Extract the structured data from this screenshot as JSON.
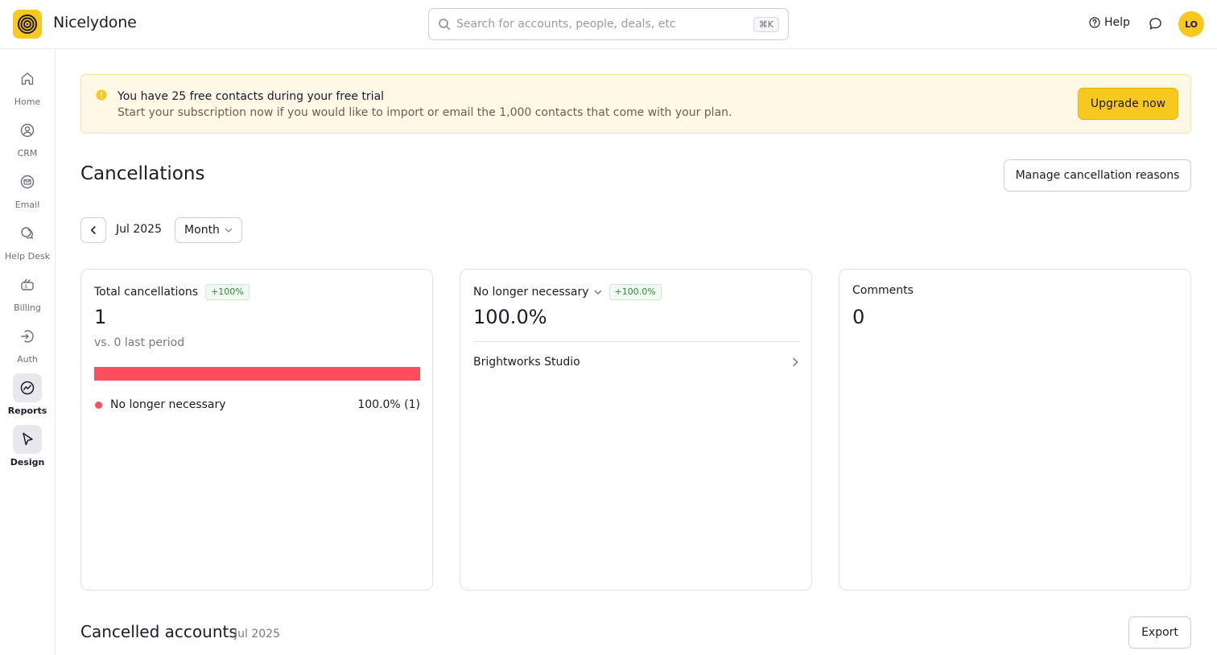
{
  "app": {
    "brand": "Nicelydone",
    "search_placeholder": "Search for accounts, people, deals, etc",
    "search_shortcut": "⌘K",
    "help_label": "Help",
    "avatar_initials": "LO",
    "accent_color": "#f7c81e"
  },
  "sidebar": {
    "items": [
      {
        "label": "Home",
        "icon": "home-icon",
        "active": false
      },
      {
        "label": "CRM",
        "icon": "user-circle-icon",
        "active": false
      },
      {
        "label": "Email",
        "icon": "mail-icon",
        "active": false
      },
      {
        "label": "Help Desk",
        "icon": "chat-bubbles-icon",
        "active": false
      },
      {
        "label": "Billing",
        "icon": "billing-icon",
        "active": false
      },
      {
        "label": "Auth",
        "icon": "auth-icon",
        "active": false
      },
      {
        "label": "Reports",
        "icon": "reports-icon",
        "active": true
      },
      {
        "label": "Design",
        "icon": "cursor-icon",
        "active": true
      }
    ]
  },
  "banner": {
    "title": "You have 25 free contacts during your free trial",
    "text": "Start your subscription now if you would like to import or email the 1,000 contacts that come with your plan.",
    "button": "Upgrade now"
  },
  "page": {
    "title": "Cancellations",
    "manage_button": "Manage cancellation reasons",
    "period": "Jul 2025",
    "granularity": "Month"
  },
  "cards": {
    "total": {
      "label": "Total cancellations",
      "badge": "+100%",
      "value": "1",
      "comparison": "vs. 0 last period",
      "bar_color": "#fc4f5e",
      "bar_fill": 1.0,
      "legend_label": "No longer necessary",
      "legend_value": "100.0% (1)"
    },
    "reason": {
      "label": "No longer necessary",
      "badge": "+100.0%",
      "value": "100.0%",
      "account": "Brightworks Studio"
    },
    "comments": {
      "label": "Comments",
      "value": "0"
    }
  },
  "section": {
    "title": "Cancelled accounts",
    "period": "Jul 2025",
    "export_button": "Export"
  }
}
